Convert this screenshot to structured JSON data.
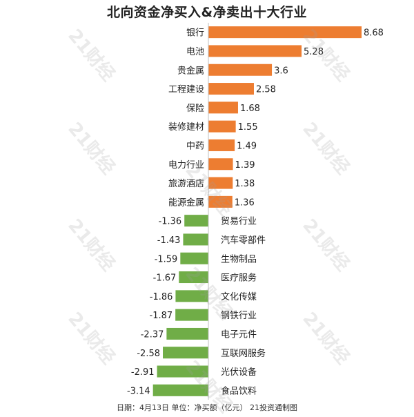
{
  "chart_data": {
    "type": "bar",
    "title": "北向资金净买入&净卖出十大行业",
    "categories": [
      "银行",
      "电池",
      "贵金属",
      "工程建设",
      "保险",
      "装修建材",
      "中药",
      "电力行业",
      "旅游酒店",
      "能源金属",
      "贸易行业",
      "汽车零部件",
      "生物制品",
      "医疗服务",
      "文化传媒",
      "钢铁行业",
      "电子元件",
      "互联网服务",
      "光伏设备",
      "食品饮料"
    ],
    "values": [
      8.68,
      5.28,
      3.6,
      2.58,
      1.68,
      1.55,
      1.49,
      1.39,
      1.38,
      1.36,
      -1.36,
      -1.43,
      -1.59,
      -1.67,
      -1.86,
      -1.87,
      -2.37,
      -2.58,
      -2.91,
      -3.14
    ],
    "value_labels": [
      "8.68",
      "5.28",
      "3.6",
      "2.58",
      "1.68",
      "1.55",
      "1.49",
      "1.39",
      "1.38",
      "1.36",
      "-1.36",
      "-1.43",
      "-1.59",
      "-1.67",
      "-1.86",
      "-1.87",
      "-2.37",
      "-2.58",
      "-2.91",
      "-3.14"
    ],
    "colors": {
      "positive": "#ed7d31",
      "negative": "#70ad47"
    },
    "footer": "日期：4月13日 单位：净买额（亿元） 21投资通制图",
    "watermark": "21财经"
  }
}
